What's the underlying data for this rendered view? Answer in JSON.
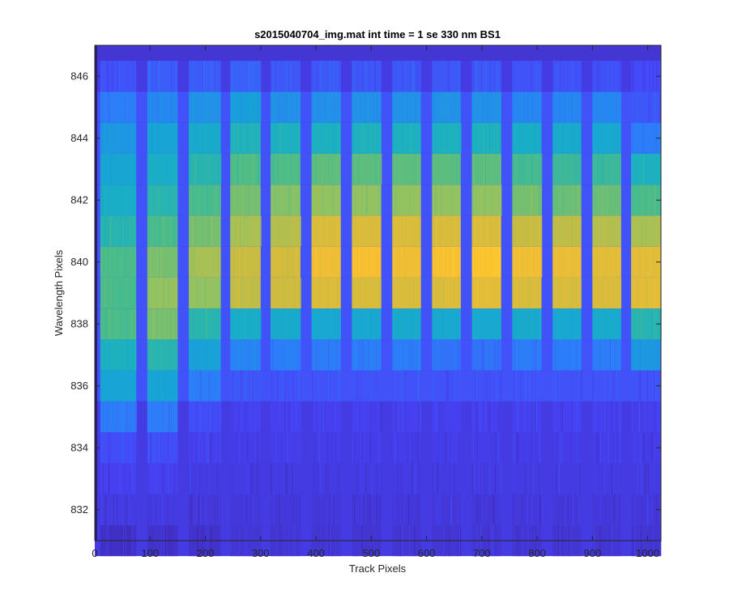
{
  "chart_data": {
    "type": "heatmap",
    "title": "s2015040704_img.mat int time = 1 se  330 nm BS1",
    "xlabel": "Track Pixels",
    "ylabel": "Wavelength Pixels",
    "xlim": [
      0,
      1024
    ],
    "ylim": [
      831,
      847
    ],
    "xticks": [
      0,
      100,
      200,
      300,
      400,
      500,
      600,
      700,
      800,
      900,
      1000
    ],
    "yticks": [
      832,
      834,
      836,
      838,
      840,
      842,
      844,
      846
    ],
    "colormap": [
      "#3e26a8",
      "#4743f8",
      "#2c7ef8",
      "#18a2d7",
      "#1ab0c3",
      "#4dbc88",
      "#96c25e",
      "#d2bb3e",
      "#fbbf32",
      "#f9fb15"
    ],
    "rows": [
      831,
      832,
      833,
      834,
      835,
      836,
      837,
      838,
      839,
      840,
      841,
      842,
      843,
      844,
      845,
      846
    ],
    "track_bands": [
      {
        "x_start": 10,
        "x_end": 75
      },
      {
        "x_start": 95,
        "x_end": 150
      },
      {
        "x_start": 170,
        "x_end": 228
      },
      {
        "x_start": 245,
        "x_end": 300
      },
      {
        "x_start": 318,
        "x_end": 372
      },
      {
        "x_start": 392,
        "x_end": 445
      },
      {
        "x_start": 465,
        "x_end": 518
      },
      {
        "x_start": 538,
        "x_end": 590
      },
      {
        "x_start": 610,
        "x_end": 662
      },
      {
        "x_start": 682,
        "x_end": 735
      },
      {
        "x_start": 755,
        "x_end": 808
      },
      {
        "x_start": 828,
        "x_end": 880
      },
      {
        "x_start": 900,
        "x_end": 952
      },
      {
        "x_start": 970,
        "x_end": 1024
      }
    ],
    "values": [
      [
        0.04,
        0.05,
        0.05,
        0.06,
        0.06,
        0.06,
        0.06,
        0.06,
        0.06,
        0.06,
        0.06,
        0.06,
        0.06,
        0.06
      ],
      [
        0.08,
        0.08,
        0.07,
        0.07,
        0.07,
        0.07,
        0.07,
        0.07,
        0.07,
        0.07,
        0.07,
        0.07,
        0.07,
        0.07
      ],
      [
        0.1,
        0.1,
        0.08,
        0.08,
        0.08,
        0.08,
        0.08,
        0.08,
        0.08,
        0.08,
        0.08,
        0.08,
        0.08,
        0.08
      ],
      [
        0.13,
        0.13,
        0.1,
        0.09,
        0.09,
        0.09,
        0.09,
        0.09,
        0.09,
        0.09,
        0.09,
        0.09,
        0.09,
        0.09
      ],
      [
        0.22,
        0.22,
        0.13,
        0.1,
        0.1,
        0.1,
        0.1,
        0.1,
        0.1,
        0.1,
        0.1,
        0.1,
        0.1,
        0.1
      ],
      [
        0.35,
        0.35,
        0.22,
        0.15,
        0.14,
        0.14,
        0.14,
        0.14,
        0.14,
        0.14,
        0.14,
        0.14,
        0.14,
        0.14
      ],
      [
        0.45,
        0.48,
        0.33,
        0.24,
        0.22,
        0.22,
        0.22,
        0.22,
        0.2,
        0.2,
        0.22,
        0.22,
        0.22,
        0.3
      ],
      [
        0.55,
        0.62,
        0.48,
        0.42,
        0.4,
        0.38,
        0.38,
        0.4,
        0.38,
        0.38,
        0.4,
        0.38,
        0.4,
        0.48
      ],
      [
        0.55,
        0.66,
        0.66,
        0.74,
        0.77,
        0.8,
        0.8,
        0.8,
        0.8,
        0.82,
        0.8,
        0.8,
        0.8,
        0.82
      ],
      [
        0.55,
        0.62,
        0.7,
        0.76,
        0.78,
        0.85,
        0.88,
        0.86,
        0.88,
        0.9,
        0.86,
        0.84,
        0.82,
        0.82
      ],
      [
        0.48,
        0.55,
        0.62,
        0.7,
        0.72,
        0.8,
        0.8,
        0.8,
        0.8,
        0.8,
        0.76,
        0.74,
        0.72,
        0.7
      ],
      [
        0.42,
        0.48,
        0.55,
        0.62,
        0.64,
        0.66,
        0.66,
        0.66,
        0.66,
        0.66,
        0.62,
        0.6,
        0.6,
        0.55
      ],
      [
        0.36,
        0.42,
        0.48,
        0.56,
        0.56,
        0.58,
        0.58,
        0.58,
        0.58,
        0.58,
        0.54,
        0.52,
        0.52,
        0.45
      ],
      [
        0.3,
        0.35,
        0.4,
        0.46,
        0.45,
        0.45,
        0.45,
        0.45,
        0.45,
        0.45,
        0.42,
        0.4,
        0.38,
        0.22
      ],
      [
        0.22,
        0.25,
        0.28,
        0.32,
        0.28,
        0.28,
        0.28,
        0.28,
        0.28,
        0.28,
        0.25,
        0.25,
        0.25,
        0.15
      ],
      [
        0.14,
        0.16,
        0.16,
        0.17,
        0.15,
        0.15,
        0.15,
        0.15,
        0.15,
        0.15,
        0.14,
        0.14,
        0.14,
        0.12
      ]
    ],
    "background_value": 0.06,
    "gap_value": 0.08,
    "legend": "none",
    "grid": false
  }
}
